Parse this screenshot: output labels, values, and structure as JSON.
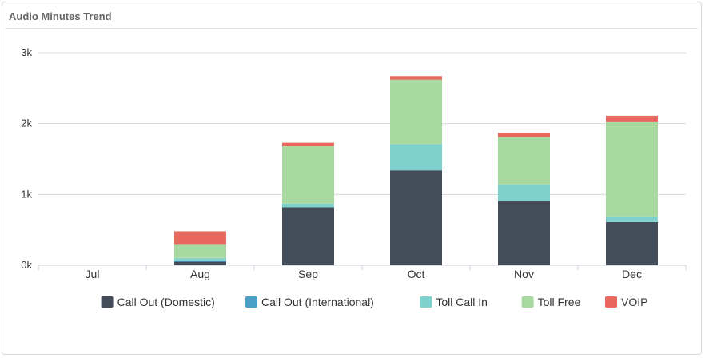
{
  "panel": {
    "title": "Audio Minutes Trend"
  },
  "chart_data": {
    "type": "bar",
    "stacked": true,
    "title": "",
    "xlabel": "",
    "ylabel": "",
    "ylim": [
      0,
      3000
    ],
    "yticks": [
      0,
      1000,
      2000,
      3000
    ],
    "ytick_labels": [
      "0k",
      "1k",
      "2k",
      "3k"
    ],
    "grid": true,
    "legend_position": "bottom",
    "categories": [
      "Jul",
      "Aug",
      "Sep",
      "Oct",
      "Nov",
      "Dec"
    ],
    "series": [
      {
        "name": "Call Out (Domestic)",
        "color": "#434d5a",
        "values": [
          0,
          50,
          820,
          1340,
          910,
          610
        ]
      },
      {
        "name": "Call Out (International)",
        "color": "#4a9fc4",
        "values": [
          0,
          20,
          0,
          0,
          0,
          0
        ]
      },
      {
        "name": "Toll Call In",
        "color": "#7fd1cd",
        "values": [
          0,
          30,
          50,
          370,
          230,
          70
        ]
      },
      {
        "name": "Toll Free",
        "color": "#a8d9a0",
        "values": [
          0,
          200,
          810,
          910,
          670,
          1340
        ]
      },
      {
        "name": "VOIP",
        "color": "#e8685e",
        "values": [
          0,
          180,
          50,
          50,
          60,
          90
        ]
      }
    ]
  }
}
